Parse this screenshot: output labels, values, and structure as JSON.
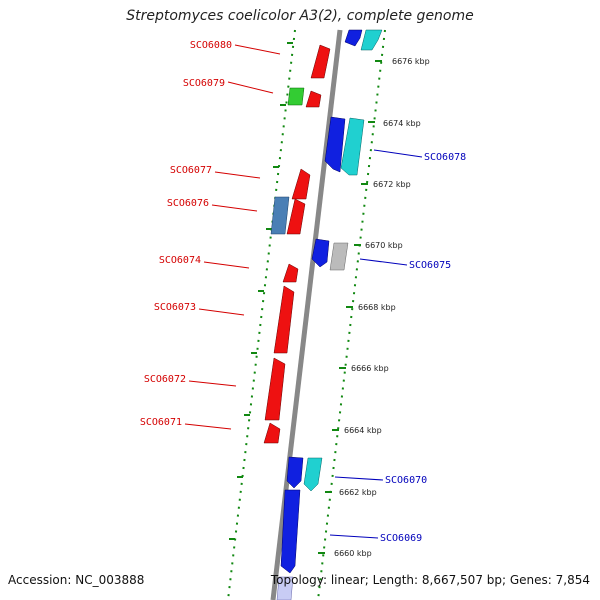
{
  "title": "Streptomyces coelicolor A3(2), complete genome",
  "footer": {
    "accession": "Accession: NC_003888",
    "summary": "Topology: linear; Length: 8,667,507 bp; Genes: 7,854"
  },
  "colors": {
    "axis": "#888888",
    "dots": "#118811",
    "left_label": "#d40000",
    "right_label": "#0000bb"
  },
  "kbp_ticks": [
    "6676 kbp",
    "6674 kbp",
    "6672 kbp",
    "6670 kbp",
    "6668 kbp",
    "6666 kbp",
    "6664 kbp",
    "6662 kbp",
    "6660 kbp"
  ],
  "genes_left": [
    "SCO6080",
    "SCO6079",
    "SCO6077",
    "SCO6076",
    "SCO6074",
    "SCO6073",
    "SCO6072",
    "SCO6071"
  ],
  "genes_right": [
    "SCO6078",
    "SCO6075",
    "SCO6070",
    "SCO6069"
  ]
}
